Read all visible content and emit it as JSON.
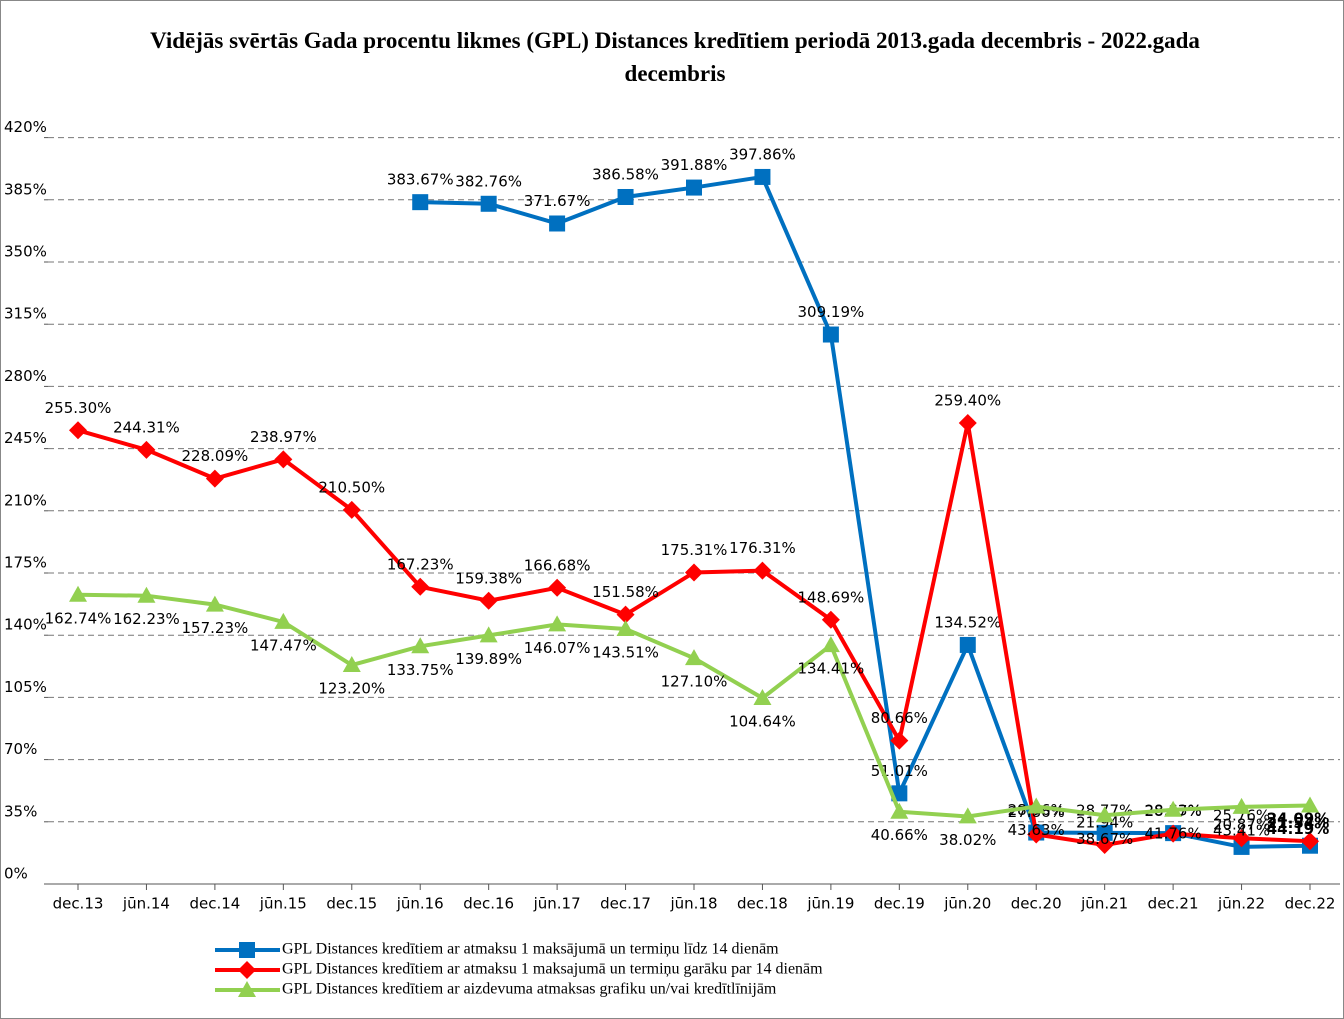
{
  "chart_data": {
    "type": "line",
    "title": "Vidējās svērtās Gada procentu likmes (GPL) Distances kredītiem periodā 2013.gada decembris - 2022.gada decembris",
    "categories": [
      "dec.13",
      "jūn.14",
      "dec.14",
      "jūn.15",
      "dec.15",
      "jūn.16",
      "dec.16",
      "jūn.17",
      "dec.17",
      "jūn.18",
      "dec.18",
      "jūn.19",
      "dec.19",
      "jūn.20",
      "dec.20",
      "jūn.21",
      "dec.21",
      "jūn.22",
      "dec.22"
    ],
    "series": [
      {
        "name": "GPL Distances kredītiem ar atmaksu 1 maksājumā un termiņu līdz 14 dienām",
        "color": "#0070c0",
        "marker": "square",
        "values": [
          null,
          null,
          null,
          null,
          null,
          383.67,
          382.76,
          371.67,
          386.58,
          391.88,
          397.86,
          309.19,
          51.01,
          134.52,
          28.96,
          28.77,
          28.63,
          20.87,
          21.54
        ],
        "value_labels": [
          null,
          null,
          null,
          null,
          null,
          "383.67%",
          "382.76%",
          "371.67%",
          "386.58%",
          "391.88%",
          "397.86%",
          "309.19%",
          "51.01%",
          "134.52%",
          "28.96%",
          "28.77%",
          "28.63%",
          "20.87%",
          "21.54%"
        ]
      },
      {
        "name": "GPL Distances kredītiem ar atmaksu 1 maksajumā un termiņu garāku par 14 dienām",
        "color": "#ff0000",
        "marker": "diamond",
        "values": [
          255.3,
          244.31,
          228.09,
          238.97,
          210.5,
          167.23,
          159.38,
          166.68,
          151.58,
          175.31,
          176.31,
          148.69,
          80.66,
          259.4,
          27.86,
          21.94,
          28.37,
          25.76,
          24.09
        ],
        "value_labels": [
          "255.30%",
          "244.31%",
          "228.09%",
          "238.97%",
          "210.50%",
          "167.23%",
          "159.38%",
          "166.68%",
          "151.58%",
          "175.31%",
          "176.31%",
          "148.69%",
          "80.66%",
          "259.40%",
          "27.86%",
          "21.94%",
          "28.37%",
          "25.76%",
          "24.09%"
        ]
      },
      {
        "name": "GPL Distances kredītiem ar aizdevuma atmaksas grafiku un/vai kredītlīnijām",
        "color": "#92d050",
        "marker": "triangle",
        "values": [
          162.74,
          162.23,
          157.23,
          147.47,
          123.2,
          133.75,
          139.89,
          146.07,
          143.51,
          127.1,
          104.64,
          134.41,
          40.66,
          38.02,
          43.63,
          38.67,
          41.76,
          43.41,
          44.19
        ],
        "value_labels": [
          "162.74%",
          "162.23%",
          "157.23%",
          "147.47%",
          "123.20%",
          "133.75%",
          "139.89%",
          "146.07%",
          "143.51%",
          "127.10%",
          "104.64%",
          "134.41%",
          "40.66%",
          "38.02%",
          "43.63%",
          "38.67%",
          "41.76%",
          "43.41%",
          "44.19%"
        ]
      }
    ],
    "ylim": [
      0,
      440
    ],
    "yticks": [
      {
        "value": 0,
        "label": "0%"
      },
      {
        "value": 35,
        "label": "35%"
      },
      {
        "value": 70,
        "label": "70%"
      },
      {
        "value": 105,
        "label": "105%"
      },
      {
        "value": 140,
        "label": "140%"
      },
      {
        "value": 175,
        "label": "175%"
      },
      {
        "value": 210,
        "label": "210%"
      },
      {
        "value": 245,
        "label": "245%"
      },
      {
        "value": 280,
        "label": "280%"
      },
      {
        "value": 315,
        "label": "315%"
      },
      {
        "value": 350,
        "label": "350%"
      },
      {
        "value": 385,
        "label": "385%"
      },
      {
        "value": 420,
        "label": "420%"
      }
    ],
    "grid": true,
    "legend": "bottom"
  }
}
